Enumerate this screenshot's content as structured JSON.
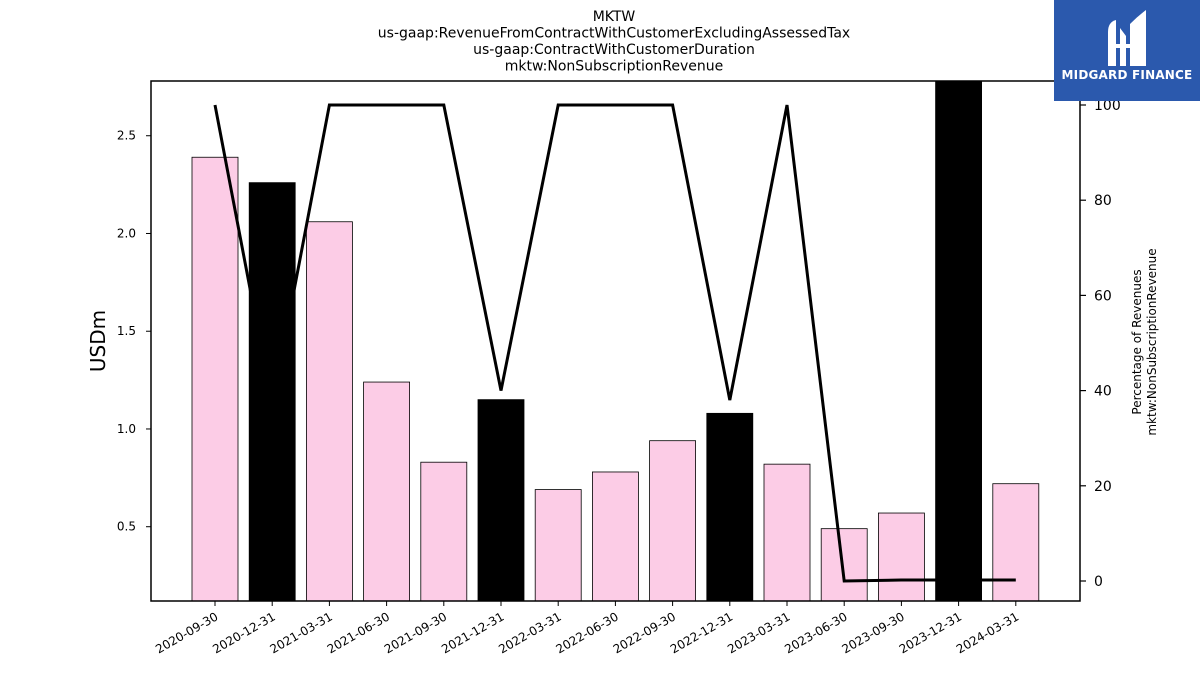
{
  "chart_data": {
    "type": "bar+line",
    "title_lines": [
      "MKTW",
      "us-gaap:RevenueFromContractWithCustomerExcludingAssessedTax",
      "us-gaap:ContractWithCustomerDuration",
      "mktw:NonSubscriptionRevenue"
    ],
    "categories": [
      "2020-09-30",
      "2020-12-31",
      "2021-03-31",
      "2021-06-30",
      "2021-09-30",
      "2021-12-31",
      "2022-03-31",
      "2022-06-30",
      "2022-09-30",
      "2022-12-31",
      "2023-03-31",
      "2023-06-30",
      "2023-09-30",
      "2023-12-31",
      "2024-03-31"
    ],
    "bars": {
      "values": [
        2.39,
        2.26,
        2.06,
        1.24,
        0.83,
        1.15,
        0.69,
        0.78,
        0.94,
        1.08,
        0.82,
        0.49,
        0.57,
        2.78,
        0.72
      ],
      "highlight": [
        false,
        true,
        false,
        false,
        false,
        true,
        false,
        false,
        false,
        true,
        false,
        false,
        false,
        true,
        false
      ],
      "color": "#fccce6",
      "highlight_color": "#000000",
      "edge_color": "#000000"
    },
    "line": {
      "values": [
        100,
        37,
        100,
        100,
        100,
        40,
        100,
        100,
        100,
        38,
        100,
        0,
        0.2,
        0.2,
        0.2
      ],
      "color": "#000000"
    },
    "ylabel_left": "USDm",
    "ylabel_right_lines": [
      "Percentage of Revenues",
      "mktw:NonSubscriptionRevenue"
    ],
    "ylim_left": [
      0.12,
      2.78
    ],
    "yticks_left": [
      0.5,
      1.0,
      1.5,
      2.0,
      2.5
    ],
    "ylim_right": [
      0,
      100
    ],
    "yticks_right": [
      0,
      20,
      40,
      60,
      80,
      100
    ],
    "grid": false
  },
  "logo": {
    "text": "MIDGARD FINANCE",
    "color": "#2b59ad"
  }
}
